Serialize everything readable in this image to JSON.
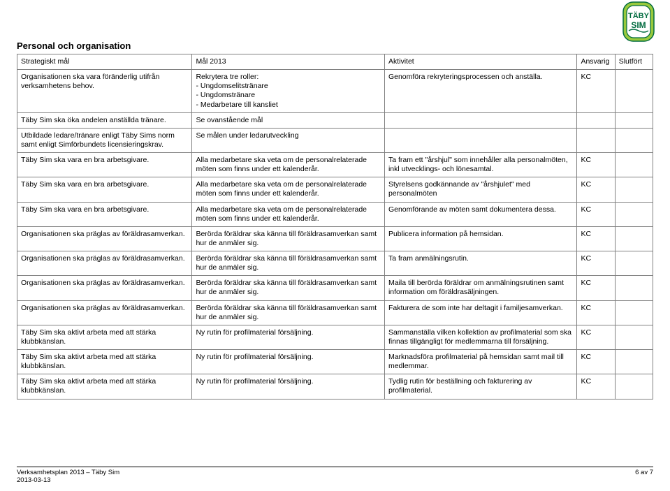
{
  "logo": {
    "bg_outer": "#98c93c",
    "bg_inner": "#ffffff",
    "text_color": "#006b3f",
    "line1": "TÄBY",
    "line2": "SIM"
  },
  "section_title": "Personal och organisation",
  "columns": [
    "Strategiskt mål",
    "Mål 2013",
    "Aktivitet",
    "Ansvarig",
    "Slutfört"
  ],
  "rows": [
    {
      "c1": "Organisationen ska vara föränderlig utifrån verksamhetens behov.",
      "c2": "Rekrytera tre roller:\n- Ungdomselitstränare\n- Ungdomstränare\n- Medarbetare till kansliet",
      "c3": "Genomföra rekryteringsprocessen och anställa.",
      "c4": "KC",
      "c5": ""
    },
    {
      "c1": "Täby Sim ska öka andelen anställda tränare.",
      "c2": "Se ovanstående mål",
      "c3": "",
      "c4": "",
      "c5": ""
    },
    {
      "c1": "Utbildade ledare/tränare enligt Täby Sims norm samt enligt Simförbundets licensieringskrav.",
      "c2": "Se målen under ledarutveckling",
      "c3": "",
      "c4": "",
      "c5": ""
    },
    {
      "c1": "Täby Sim ska vara en bra arbetsgivare.",
      "c2": "Alla medarbetare ska veta om de personalrelaterade möten som finns under ett kalenderår.",
      "c3": "Ta fram ett \"årshjul\" som innehåller alla personalmöten, inkl utvecklings- och lönesamtal.",
      "c4": "KC",
      "c5": ""
    },
    {
      "c1": "Täby Sim ska vara en bra arbetsgivare.",
      "c2": "Alla medarbetare ska veta om de personalrelaterade möten som finns under ett kalenderår.",
      "c3": "Styrelsens godkännande av \"årshjulet\" med personalmöten",
      "c4": "KC",
      "c5": ""
    },
    {
      "c1": "Täby Sim ska vara en bra arbetsgivare.",
      "c2": "Alla medarbetare ska veta om de personalrelaterade möten som finns under ett kalenderår.",
      "c3": "Genomförande av möten samt dokumentera dessa.",
      "c4": "KC",
      "c5": ""
    },
    {
      "c1": "Organisationen ska präglas av föräldrasamverkan.",
      "c2": "Berörda föräldrar ska känna till föräldrasamverkan samt hur de anmäler sig.",
      "c3": "Publicera information på hemsidan.",
      "c4": "KC",
      "c5": ""
    },
    {
      "c1": "Organisationen ska präglas av föräldrasamverkan.",
      "c2": "Berörda föräldrar ska känna till föräldrasamverkan samt hur de anmäler sig.",
      "c3": "Ta fram anmälningsrutin.",
      "c4": "KC",
      "c5": ""
    },
    {
      "c1": "Organisationen ska präglas av föräldrasamverkan.",
      "c2": "Berörda föräldrar ska känna till föräldrasamverkan samt hur de anmäler sig.",
      "c3": "Maila till berörda föräldrar om anmälningsrutinen samt information om föräldrasäljningen.",
      "c4": "KC",
      "c5": ""
    },
    {
      "c1": "Organisationen ska präglas av föräldrasamverkan.",
      "c2": "Berörda föräldrar ska känna till föräldrasamverkan samt hur de anmäler sig.",
      "c3": "Fakturera de som inte har deltagit i familjesamverkan.",
      "c4": "KC",
      "c5": ""
    },
    {
      "c1": "Täby Sim ska aktivt arbeta med att stärka klubbkänslan.",
      "c2": "Ny rutin för profilmaterial försäljning.",
      "c3": "Sammanställa vilken kollektion av profilmaterial som ska finnas tillgängligt för medlemmarna till försäljning.",
      "c4": "KC",
      "c5": ""
    },
    {
      "c1": "Täby Sim ska aktivt arbeta med att stärka klubbkänslan.",
      "c2": "Ny rutin för profilmaterial försäljning.",
      "c3": "Marknadsföra profilmaterial på hemsidan samt mail till medlemmar.",
      "c4": "KC",
      "c5": ""
    },
    {
      "c1": "Täby Sim ska aktivt arbeta med att stärka klubbkänslan.",
      "c2": "Ny rutin för profilmaterial försäljning.",
      "c3": "Tydlig rutin för beställning och fakturering av profilmaterial.",
      "c4": "KC",
      "c5": ""
    }
  ],
  "footer": {
    "left_line1": "Verksamhetsplan 2013 – Täby Sim",
    "left_line2": "2013-03-13",
    "right": "6 av 7"
  }
}
